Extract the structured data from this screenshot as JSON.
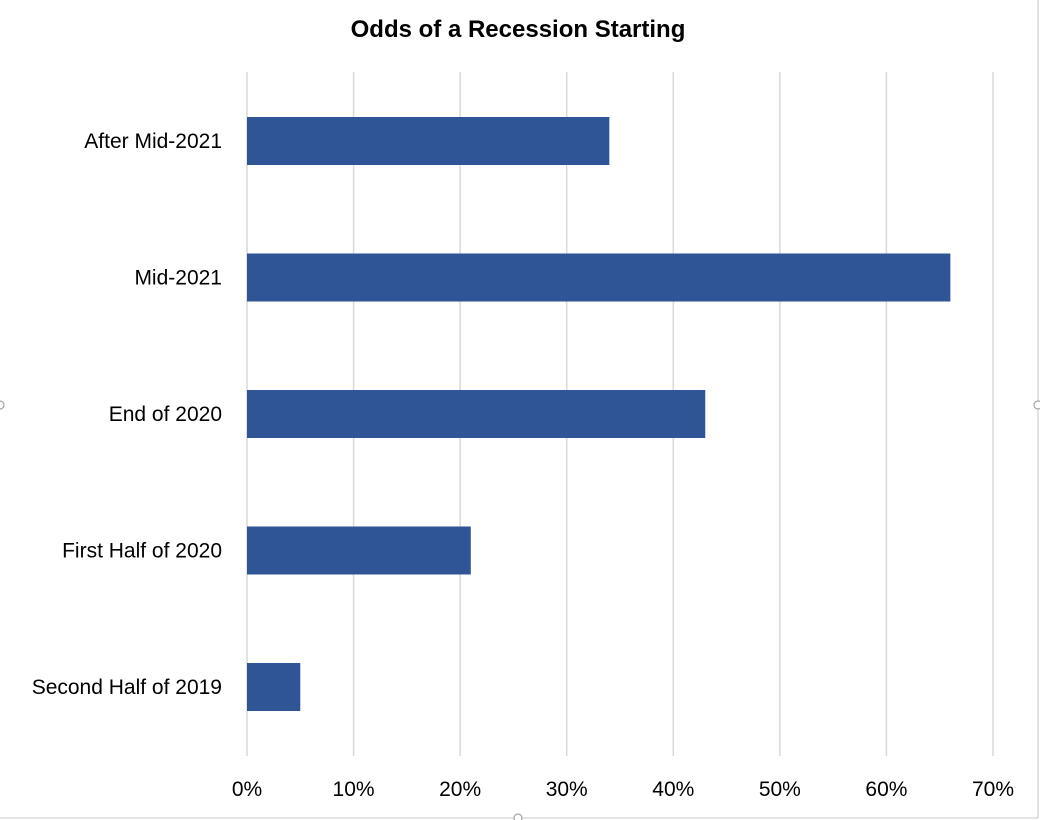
{
  "chart_data": {
    "type": "bar",
    "orientation": "horizontal",
    "title": "Odds of a Recession Starting",
    "categories": [
      "After Mid-2021",
      "Mid-2021",
      "End of 2020",
      "First Half of 2020",
      "Second Half of 2019"
    ],
    "values": [
      34,
      66,
      43,
      21,
      5
    ],
    "x_ticks": [
      "0%",
      "10%",
      "20%",
      "30%",
      "40%",
      "50%",
      "60%",
      "70%"
    ],
    "xlim": [
      0,
      70
    ],
    "xlabel": "",
    "ylabel": "",
    "grid": "vertical",
    "legend": "none",
    "bar_color": "#2F5597"
  }
}
